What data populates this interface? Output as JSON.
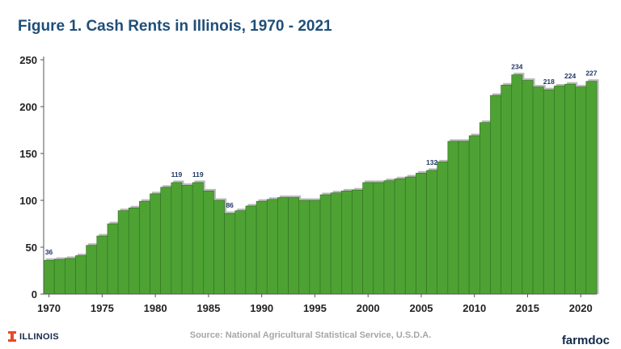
{
  "header": {
    "title": "Figure 1. Cash Rents in Illinois, 1970 - 2021"
  },
  "footer": {
    "logo_text": "ILLINOIS",
    "source": "Source:  National Agricultural Statistical Service, U.S.D.A.",
    "brand": "farmdoc"
  },
  "colors": {
    "bar_fill": "#4ea234",
    "bar_stroke": "#2f6f1f",
    "bar_side": "#b9b9b9",
    "title": "#1f4e79",
    "label": "#1f3864",
    "brand": "#13294b",
    "logo_orange": "#e84a27"
  },
  "chart_data": {
    "type": "bar",
    "title": "Figure 1. Cash Rents in Illinois, 1970 - 2021",
    "xlabel": "",
    "ylabel": "",
    "ylim": [
      0,
      250
    ],
    "yticks": [
      0,
      50,
      100,
      150,
      200,
      250
    ],
    "xticks": [
      1970,
      1975,
      1980,
      1985,
      1990,
      1995,
      2000,
      2005,
      2010,
      2015,
      2020
    ],
    "grid": false,
    "x": [
      1970,
      1971,
      1972,
      1973,
      1974,
      1975,
      1976,
      1977,
      1978,
      1979,
      1980,
      1981,
      1982,
      1983,
      1984,
      1985,
      1986,
      1987,
      1988,
      1989,
      1990,
      1991,
      1992,
      1993,
      1994,
      1995,
      1996,
      1997,
      1998,
      1999,
      2000,
      2001,
      2002,
      2003,
      2004,
      2005,
      2006,
      2007,
      2008,
      2009,
      2010,
      2011,
      2012,
      2013,
      2014,
      2015,
      2016,
      2017,
      2018,
      2019,
      2020,
      2021
    ],
    "values": [
      36,
      37,
      38,
      41,
      52,
      62,
      75,
      89,
      92,
      99,
      107,
      114,
      119,
      116,
      119,
      110,
      100,
      86,
      89,
      94,
      99,
      101,
      103,
      103,
      100,
      100,
      106,
      108,
      110,
      111,
      119,
      119,
      121,
      123,
      125,
      129,
      132,
      141,
      163,
      163,
      169,
      183,
      212,
      223,
      234,
      228,
      221,
      218,
      222,
      224,
      221,
      227
    ],
    "data_labels": [
      {
        "x": 1970,
        "text": "36"
      },
      {
        "x": 1982,
        "text": "119"
      },
      {
        "x": 1984,
        "text": "119"
      },
      {
        "x": 1987,
        "text": "86"
      },
      {
        "x": 2006,
        "text": "132"
      },
      {
        "x": 2014,
        "text": "234"
      },
      {
        "x": 2017,
        "text": "218"
      },
      {
        "x": 2019,
        "text": "224"
      },
      {
        "x": 2021,
        "text": "227"
      }
    ]
  }
}
